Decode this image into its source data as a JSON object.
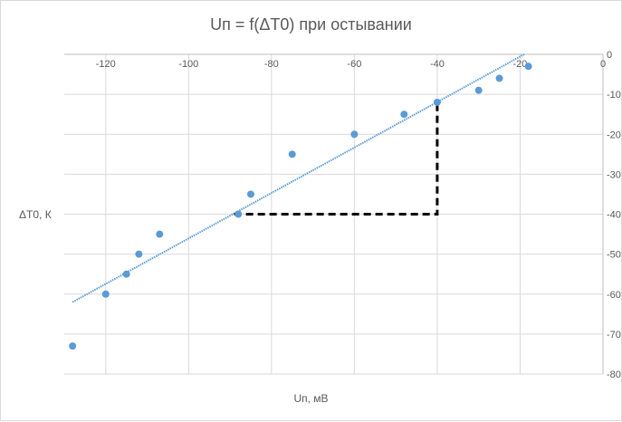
{
  "chart_data": {
    "type": "scatter",
    "title": "Uп = f(ΔT0) при остывании",
    "xlabel": "Uп, мВ",
    "ylabel": "ΔT0, К",
    "xlim": [
      -130,
      0
    ],
    "ylim": [
      -80,
      0
    ],
    "x_ticks": [
      -120,
      -100,
      -80,
      -60,
      -40,
      -20,
      0
    ],
    "y_ticks": [
      0,
      -10,
      -20,
      -30,
      -40,
      -50,
      -60,
      -70,
      -80
    ],
    "grid": true,
    "legend": "none",
    "points": [
      {
        "x": -128,
        "y": -73
      },
      {
        "x": -120,
        "y": -60
      },
      {
        "x": -115,
        "y": -55
      },
      {
        "x": -112,
        "y": -50
      },
      {
        "x": -107,
        "y": -45
      },
      {
        "x": -88,
        "y": -40
      },
      {
        "x": -85,
        "y": -35
      },
      {
        "x": -75,
        "y": -25
      },
      {
        "x": -60,
        "y": -20
      },
      {
        "x": -48,
        "y": -15
      },
      {
        "x": -40,
        "y": -12
      },
      {
        "x": -30,
        "y": -9
      },
      {
        "x": -25,
        "y": -6
      },
      {
        "x": -18,
        "y": -3
      }
    ],
    "trendline": {
      "x": [
        -128,
        -19
      ],
      "y": [
        -62,
        0
      ]
    },
    "guide_line": {
      "x": [
        -89,
        -40,
        -40
      ],
      "y": [
        -40,
        -40,
        -12
      ]
    },
    "colors": {
      "points": "#5b9bd5",
      "trendline": "#5b9bd5",
      "guide_line": "#000000",
      "grid": "#d9d9d9"
    }
  }
}
